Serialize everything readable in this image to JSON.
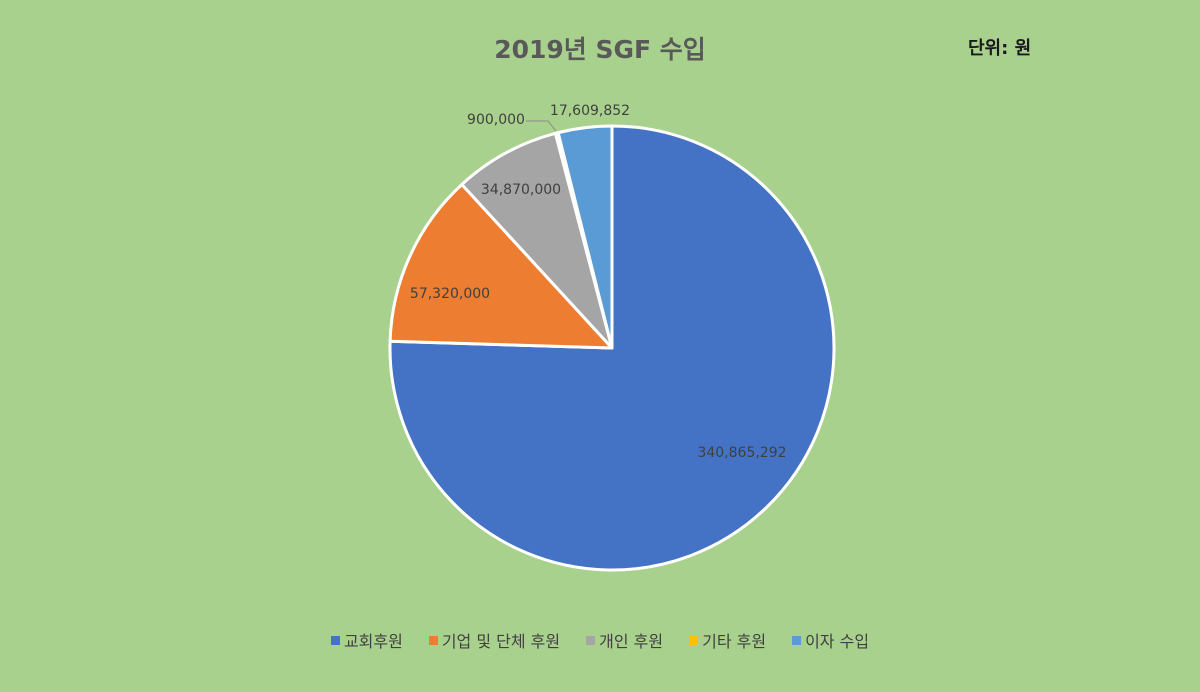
{
  "chart_data": {
    "type": "pie",
    "title": "2019년 SGF 수입",
    "unit_note": "단위: 원",
    "slices": [
      {
        "name": "교회후원",
        "value": 340865292,
        "label": "340,865,292",
        "color": "#4472c4"
      },
      {
        "name": "기업 및 단체 후원",
        "value": 57320000,
        "label": "57,320,000",
        "color": "#ed7d31"
      },
      {
        "name": "개인 후원",
        "value": 34870000,
        "label": "34,870,000",
        "color": "#a5a5a5"
      },
      {
        "name": "기타 후원",
        "value": 900000,
        "label": "900,000",
        "color": "#ffc000"
      },
      {
        "name": "이자 수입",
        "value": 17609852,
        "label": "17,609,852",
        "color": "#5b9bd5"
      }
    ],
    "legend_position": "bottom"
  }
}
